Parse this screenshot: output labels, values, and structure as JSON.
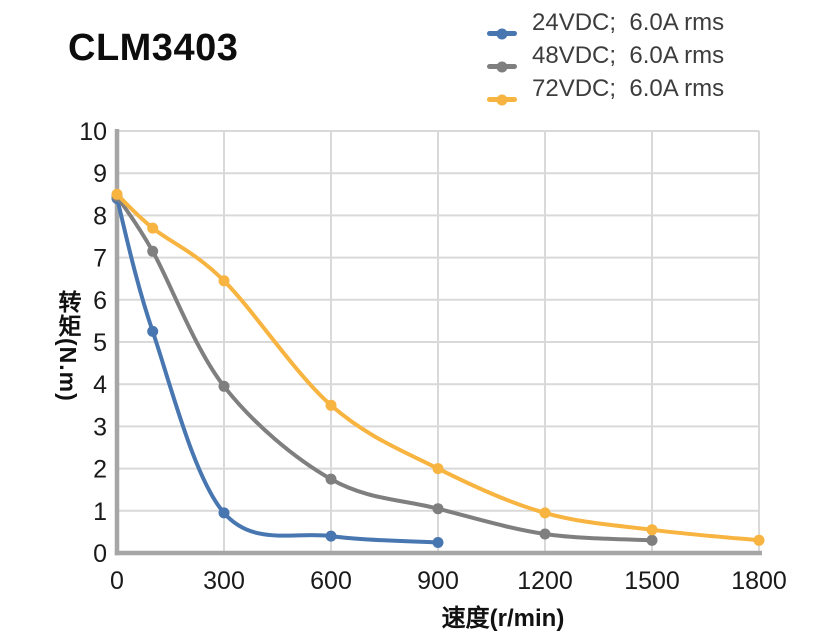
{
  "style": {
    "background": "#FFFFFF",
    "axis_color": "#A6A6A6",
    "grid_color": "#D9D9D9",
    "tick_text_color": "#1A1A1A",
    "legend_text_color": "#3D3D3D",
    "title_color": "#0D0D0D"
  },
  "chart_data": {
    "type": "line",
    "title": "CLM3403",
    "xlabel": "速度(r/min)",
    "ylabel": "转矩(N.m)",
    "xlim": [
      0,
      1800
    ],
    "ylim": [
      0,
      10
    ],
    "x_ticks": [
      0,
      300,
      600,
      900,
      1200,
      1500,
      1800
    ],
    "y_ticks": [
      0,
      1,
      2,
      3,
      4,
      5,
      6,
      7,
      8,
      9,
      10
    ],
    "grid": true,
    "legend_position": "top-right",
    "marker": "circle",
    "series": [
      {
        "id": "24vdc",
        "name": "24VDC;  6.0A rms",
        "color": "#4876B0",
        "points": [
          [
            0,
            8.4
          ],
          [
            100,
            5.25
          ],
          [
            300,
            0.95
          ],
          [
            600,
            0.4
          ],
          [
            900,
            0.25
          ]
        ]
      },
      {
        "id": "48vdc",
        "name": "48VDC;  6.0A rms",
        "color": "#7F7F7F",
        "points": [
          [
            0,
            8.45
          ],
          [
            100,
            7.15
          ],
          [
            300,
            3.95
          ],
          [
            600,
            1.75
          ],
          [
            900,
            1.05
          ],
          [
            1200,
            0.45
          ],
          [
            1500,
            0.3
          ]
        ]
      },
      {
        "id": "72vdc",
        "name": "72VDC;  6.0A rms",
        "color": "#F8B440",
        "points": [
          [
            0,
            8.5
          ],
          [
            100,
            7.7
          ],
          [
            300,
            6.45
          ],
          [
            600,
            3.5
          ],
          [
            900,
            2.0
          ],
          [
            1200,
            0.95
          ],
          [
            1500,
            0.55
          ],
          [
            1800,
            0.3
          ]
        ]
      }
    ]
  }
}
